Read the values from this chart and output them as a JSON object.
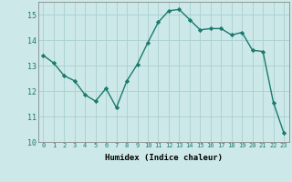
{
  "x": [
    0,
    1,
    2,
    3,
    4,
    5,
    6,
    7,
    8,
    9,
    10,
    11,
    12,
    13,
    14,
    15,
    16,
    17,
    18,
    19,
    20,
    21,
    22,
    23
  ],
  "y": [
    13.4,
    13.1,
    12.6,
    12.4,
    11.85,
    11.6,
    12.1,
    11.35,
    12.4,
    13.05,
    13.9,
    14.7,
    15.15,
    15.2,
    14.8,
    14.4,
    14.45,
    14.45,
    14.2,
    14.3,
    13.6,
    13.55,
    11.55,
    10.35
  ],
  "xlabel": "Humidex (Indice chaleur)",
  "ylim": [
    10,
    15.5
  ],
  "xlim": [
    -0.5,
    23.5
  ],
  "yticks": [
    10,
    11,
    12,
    13,
    14,
    15
  ],
  "xticks": [
    0,
    1,
    2,
    3,
    4,
    5,
    6,
    7,
    8,
    9,
    10,
    11,
    12,
    13,
    14,
    15,
    16,
    17,
    18,
    19,
    20,
    21,
    22,
    23
  ],
  "line_color": "#1a7a6e",
  "marker": "D",
  "marker_size": 2.2,
  "bg_color": "#cce8e8",
  "grid_color": "#aacfcf",
  "xlabel_fontsize": 6.5,
  "xtick_fontsize": 5.0,
  "ytick_fontsize": 6.0
}
